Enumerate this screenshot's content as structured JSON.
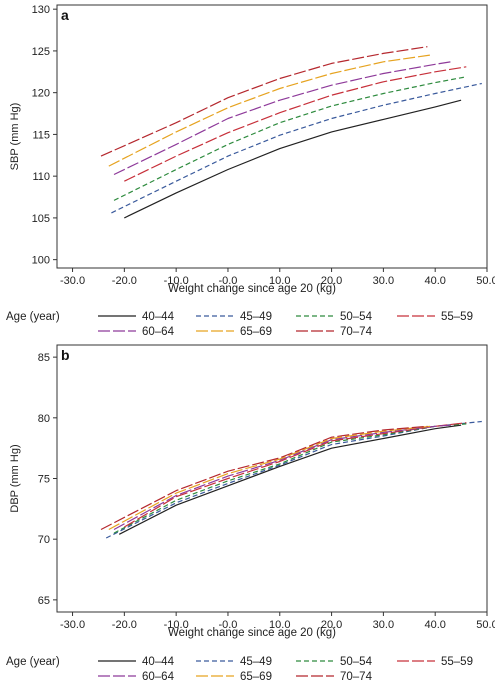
{
  "chart_data": [
    {
      "type": "line",
      "panel_label": "a",
      "xlabel": "Weight change since age 20 (kg)",
      "ylabel": "SBP (mm Hg)",
      "xlim": [
        -33,
        50
      ],
      "ylim": [
        99,
        130.5
      ],
      "xticks": [
        -30,
        -20,
        -10,
        0,
        10,
        20,
        30,
        40,
        50
      ],
      "xtick_labels": [
        "-30.0",
        "-20.0",
        "-10.0",
        "-0.0",
        "10.0",
        "20.0",
        "30.0",
        "40.0",
        "50.0"
      ],
      "yticks": [
        100,
        105,
        110,
        115,
        120,
        125,
        130
      ],
      "ytick_labels": [
        "100",
        "105",
        "110",
        "115",
        "120",
        "125",
        "130"
      ],
      "grid": false,
      "legend": {
        "title": "Age (year)",
        "placement": "bottom",
        "entries": [
          "40–44",
          "45–49",
          "50–54",
          "55–59",
          "60–64",
          "65–69",
          "70–74"
        ]
      },
      "series": [
        {
          "name": "40–44",
          "color": "#222222",
          "dash": "solid",
          "x": [
            -20,
            -10,
            0,
            10,
            20,
            30,
            40,
            45
          ],
          "y": [
            105,
            108,
            110.8,
            113.3,
            115.3,
            116.8,
            118.3,
            119.1
          ]
        },
        {
          "name": "45–49",
          "color": "#3a5a9c",
          "dash": "dashed",
          "x": [
            -22.5,
            -10,
            0,
            10,
            20,
            30,
            40,
            49
          ],
          "y": [
            105.6,
            109.4,
            112.4,
            114.9,
            116.9,
            118.5,
            119.9,
            121.1
          ]
        },
        {
          "name": "50–54",
          "color": "#2e8b3e",
          "dash": "dashed",
          "x": [
            -22,
            -10,
            0,
            10,
            20,
            30,
            40,
            46
          ],
          "y": [
            107.1,
            110.8,
            113.8,
            116.4,
            118.4,
            119.9,
            121.2,
            121.9
          ]
        },
        {
          "name": "55–59",
          "color": "#c7303a",
          "dash": "longdash",
          "x": [
            -20,
            -10,
            0,
            10,
            20,
            30,
            40,
            46
          ],
          "y": [
            109.4,
            112.4,
            115.2,
            117.6,
            119.7,
            121.3,
            122.5,
            123.1
          ]
        },
        {
          "name": "60–64",
          "color": "#8e3a9a",
          "dash": "longdash",
          "x": [
            -22,
            -10,
            0,
            10,
            20,
            30,
            40,
            43
          ],
          "y": [
            110.2,
            113.8,
            116.9,
            119.1,
            120.9,
            122.3,
            123.4,
            123.7
          ]
        },
        {
          "name": "65–69",
          "color": "#e6a320",
          "dash": "longdash",
          "x": [
            -23,
            -10,
            0,
            10,
            20,
            30,
            39
          ],
          "y": [
            111.2,
            115.3,
            118.2,
            120.5,
            122.3,
            123.7,
            124.5
          ]
        },
        {
          "name": "70–74",
          "color": "#b5282e",
          "dash": "longdash",
          "x": [
            -24.5,
            -10,
            0,
            10,
            20,
            30,
            38.5
          ],
          "y": [
            112.4,
            116.4,
            119.4,
            121.7,
            123.5,
            124.7,
            125.5
          ]
        }
      ]
    },
    {
      "type": "line",
      "panel_label": "b",
      "xlabel": "Weight change since age 20 (kg)",
      "ylabel": "DBP (mm Hg)",
      "xlim": [
        -33,
        50
      ],
      "ylim": [
        64,
        86
      ],
      "xticks": [
        -30,
        -20,
        -10,
        0,
        10,
        20,
        30,
        40,
        50
      ],
      "xtick_labels": [
        "-30.0",
        "-20.0",
        "-10.0",
        "-0.0",
        "10.0",
        "20.0",
        "30.0",
        "40.0",
        "50.0"
      ],
      "yticks": [
        65,
        70,
        75,
        80,
        85
      ],
      "ytick_labels": [
        "65",
        "70",
        "75",
        "80",
        "85"
      ],
      "grid": false,
      "legend": {
        "title": "Age (year)",
        "placement": "bottom",
        "entries": [
          "40–44",
          "45–49",
          "50–54",
          "55–59",
          "60–64",
          "65–69",
          "70–74"
        ]
      },
      "series": [
        {
          "name": "40–44",
          "color": "#222222",
          "dash": "solid",
          "x": [
            -21,
            -10,
            0,
            10,
            20,
            30,
            40,
            45
          ],
          "y": [
            70.4,
            72.8,
            74.4,
            76.0,
            77.5,
            78.3,
            79.1,
            79.4
          ]
        },
        {
          "name": "45–49",
          "color": "#3a5a9c",
          "dash": "dashed",
          "x": [
            -23.5,
            -10,
            0,
            10,
            20,
            30,
            40,
            49
          ],
          "y": [
            70.1,
            73.0,
            74.6,
            76.1,
            77.8,
            78.5,
            79.3,
            79.7
          ]
        },
        {
          "name": "50–54",
          "color": "#2e8b3e",
          "dash": "dashed",
          "x": [
            -22,
            -10,
            0,
            10,
            20,
            30,
            40,
            46
          ],
          "y": [
            70.5,
            73.2,
            74.8,
            76.2,
            78.0,
            78.6,
            79.3,
            79.5
          ]
        },
        {
          "name": "55–59",
          "color": "#c7303a",
          "dash": "longdash",
          "x": [
            -20,
            -10,
            0,
            10,
            20,
            30,
            40,
            46
          ],
          "y": [
            71.0,
            73.5,
            75.0,
            76.4,
            78.1,
            78.7,
            79.3,
            79.6
          ]
        },
        {
          "name": "60–64",
          "color": "#8e3a9a",
          "dash": "longdash",
          "x": [
            -22,
            -10,
            0,
            10,
            20,
            30,
            40,
            43
          ],
          "y": [
            70.8,
            73.6,
            75.2,
            76.5,
            78.2,
            78.8,
            79.3,
            79.4
          ]
        },
        {
          "name": "65–69",
          "color": "#e6a320",
          "dash": "longdash",
          "x": [
            -23,
            -10,
            0,
            10,
            20,
            30,
            39
          ],
          "y": [
            70.8,
            73.8,
            75.4,
            76.6,
            78.3,
            78.9,
            79.3
          ]
        },
        {
          "name": "70–74",
          "color": "#b5282e",
          "dash": "longdash",
          "x": [
            -24.5,
            -10,
            0,
            10,
            20,
            30,
            38.5
          ],
          "y": [
            70.8,
            74.0,
            75.6,
            76.7,
            78.4,
            79.0,
            79.3
          ]
        }
      ]
    }
  ]
}
